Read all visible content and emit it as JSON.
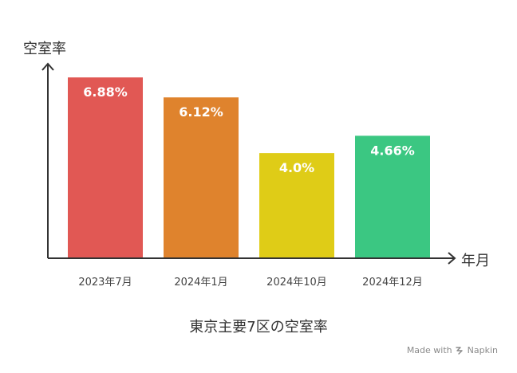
{
  "chart_data": {
    "type": "bar",
    "title": "東京主要7区の空室率",
    "xlabel": "年月",
    "ylabel": "空室率",
    "categories": [
      "2023年7月",
      "2024年1月",
      "2024年10月",
      "2024年12月"
    ],
    "values": [
      6.88,
      6.12,
      4.0,
      4.66
    ],
    "value_labels": [
      "6.88%",
      "6.12%",
      "4.0%",
      "4.66%"
    ],
    "colors": [
      "#e15854",
      "#df832d",
      "#dfcc17",
      "#3bc782"
    ],
    "ylim": [
      0,
      7.4
    ],
    "grid": false,
    "legend": "none"
  },
  "footer": {
    "made_with": "Made with",
    "brand": "Napkin"
  },
  "icons": {
    "brand_logo": "napkin-logo-icon"
  }
}
